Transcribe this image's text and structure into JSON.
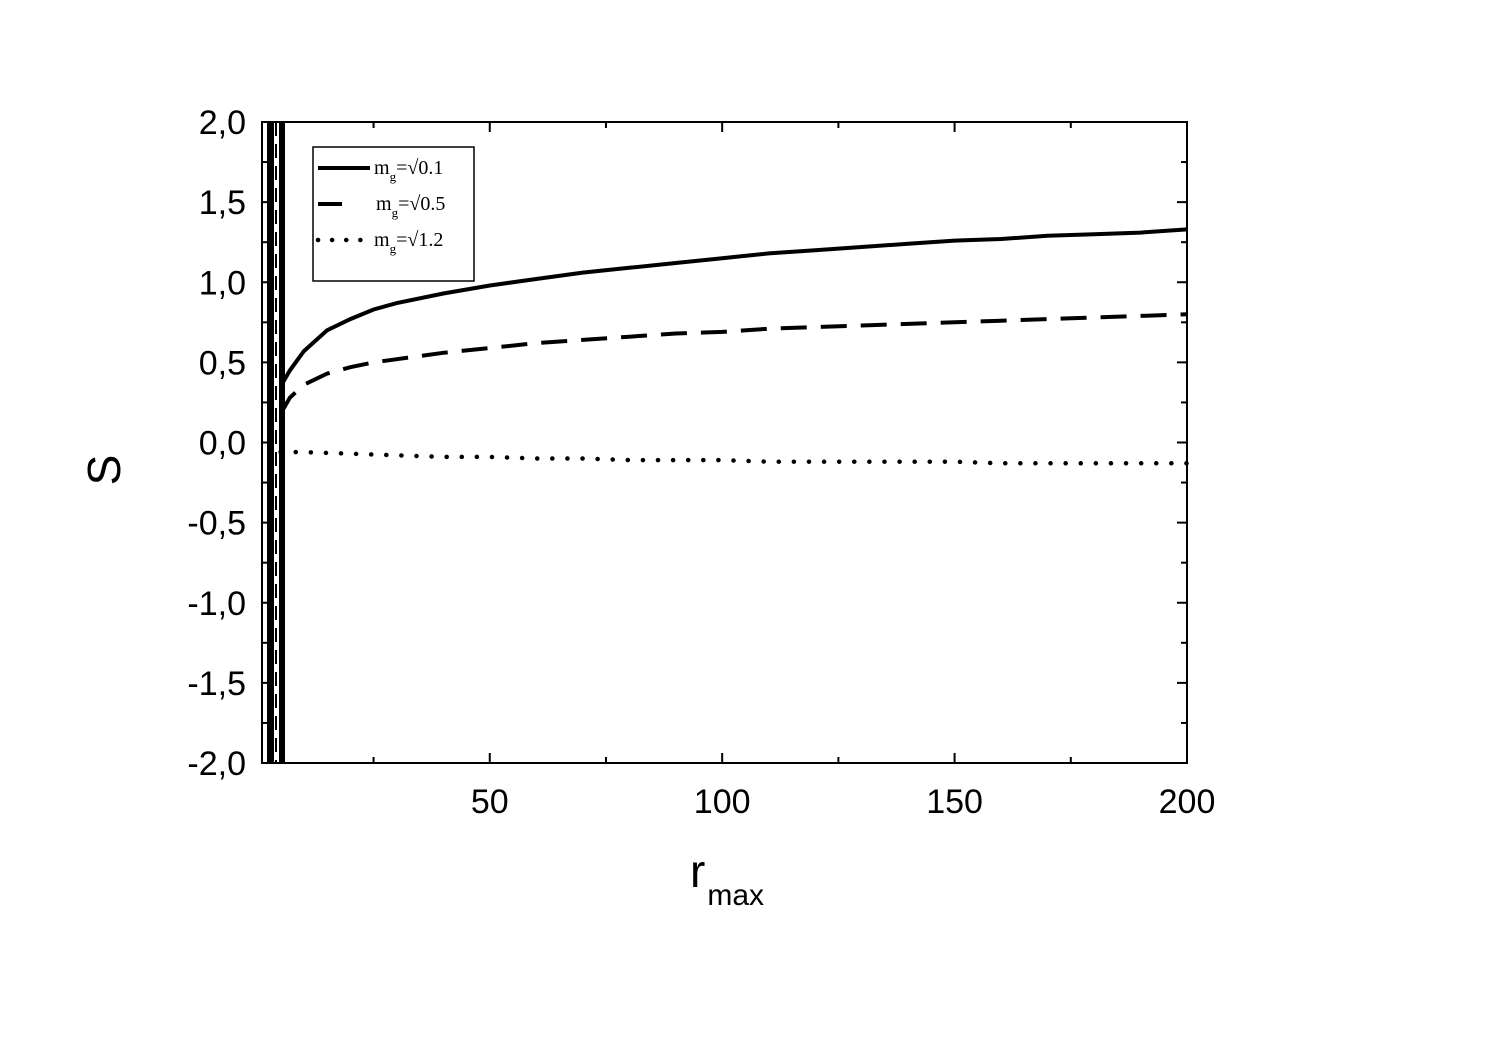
{
  "chart_data": {
    "type": "line",
    "xlabel": "r",
    "xlabel_subscript": "max",
    "ylabel": "S",
    "xlim": [
      1,
      200
    ],
    "ylim": [
      -2.0,
      2.0
    ],
    "x_ticks": [
      50,
      100,
      150,
      200
    ],
    "x_tick_labels": [
      "50",
      "100",
      "150",
      "200"
    ],
    "y_ticks": [
      -2.0,
      -1.5,
      -1.0,
      -0.5,
      0.0,
      0.5,
      1.0,
      1.5,
      2.0
    ],
    "y_tick_labels": [
      "-2,0",
      "-1,5",
      "-1,0",
      "-0,5",
      "0,0",
      "0,5",
      "1,0",
      "1,5",
      "2,0"
    ],
    "grid": false,
    "legend_position": "top-left",
    "series": [
      {
        "name": "m",
        "name_sub": "g",
        "name_rest": "=√0.1",
        "style": "solid",
        "x": [
          5,
          7,
          10,
          15,
          20,
          25,
          30,
          40,
          50,
          60,
          70,
          80,
          90,
          100,
          110,
          120,
          130,
          140,
          150,
          160,
          170,
          180,
          190,
          200
        ],
        "y": [
          0.35,
          0.45,
          0.57,
          0.7,
          0.77,
          0.83,
          0.87,
          0.93,
          0.98,
          1.02,
          1.06,
          1.09,
          1.12,
          1.15,
          1.18,
          1.2,
          1.22,
          1.24,
          1.26,
          1.27,
          1.29,
          1.3,
          1.31,
          1.33
        ]
      },
      {
        "name": "m",
        "name_sub": "g",
        "name_rest": "=√0.5",
        "style": "dashed",
        "x": [
          5,
          7,
          10,
          15,
          20,
          25,
          30,
          40,
          50,
          60,
          70,
          80,
          90,
          100,
          110,
          120,
          130,
          140,
          150,
          160,
          170,
          180,
          190,
          200
        ],
        "y": [
          0.18,
          0.28,
          0.36,
          0.43,
          0.47,
          0.5,
          0.52,
          0.56,
          0.59,
          0.62,
          0.64,
          0.66,
          0.68,
          0.69,
          0.71,
          0.72,
          0.73,
          0.74,
          0.75,
          0.76,
          0.77,
          0.78,
          0.79,
          0.8
        ]
      },
      {
        "name": "m",
        "name_sub": "g",
        "name_rest": "=√1.2",
        "style": "dotted",
        "x": [
          5,
          10,
          20,
          30,
          40,
          50,
          60,
          70,
          80,
          90,
          100,
          110,
          120,
          130,
          140,
          150,
          160,
          170,
          180,
          190,
          200
        ],
        "y": [
          -0.06,
          -0.06,
          -0.07,
          -0.08,
          -0.09,
          -0.09,
          -0.1,
          -0.1,
          -0.11,
          -0.11,
          -0.11,
          -0.12,
          -0.12,
          -0.12,
          -0.12,
          -0.12,
          -0.13,
          -0.13,
          -0.13,
          -0.13,
          -0.13
        ]
      }
    ]
  }
}
